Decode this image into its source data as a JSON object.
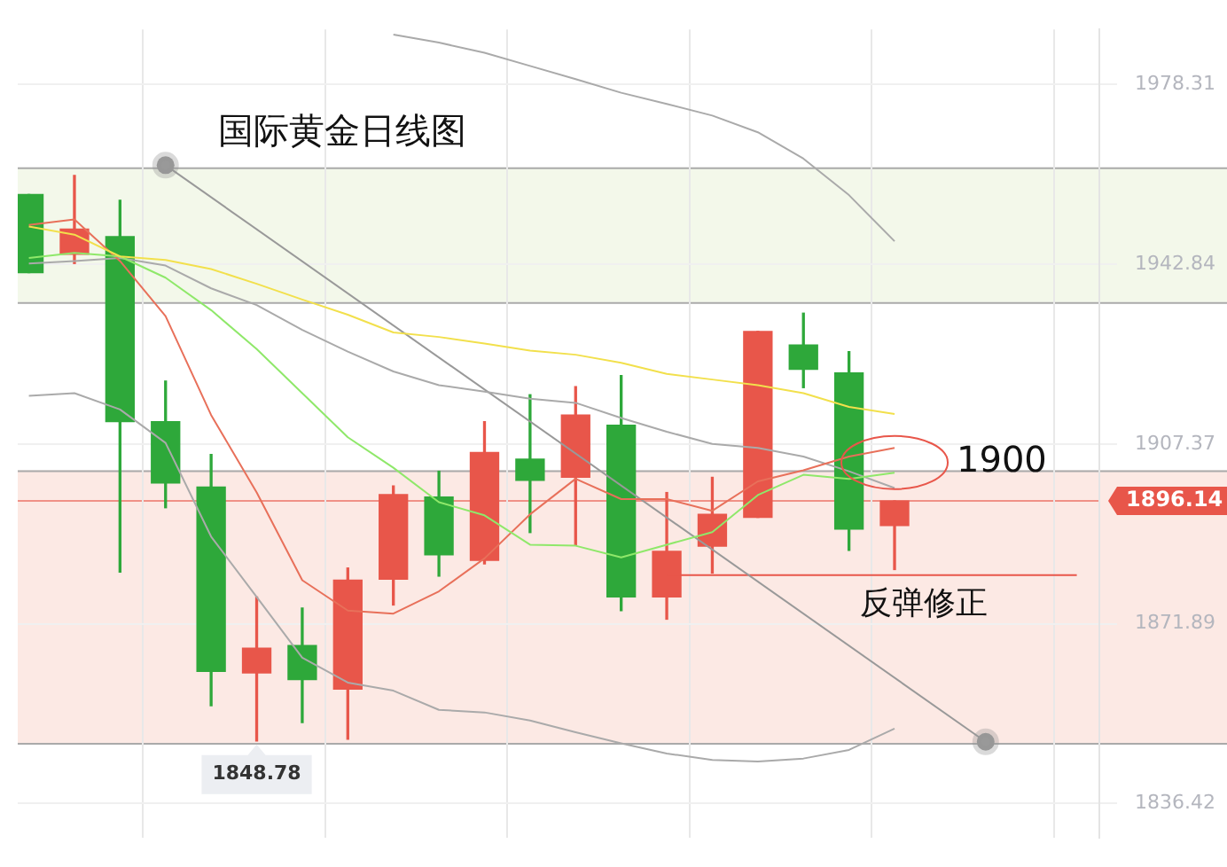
{
  "chart_data": {
    "type": "candlestick",
    "title": "国际黄金日线图",
    "categories": [
      null,
      null,
      null,
      null,
      null,
      null,
      null,
      null,
      null,
      null,
      null,
      null,
      null,
      null,
      null,
      null,
      null,
      null,
      null,
      null,
      null,
      null,
      null,
      null
    ],
    "series": [
      {
        "type": "line",
        "color": "#f2e04c",
        "values": [
          1950.3,
          1948.7,
          1944.4,
          1943.7,
          1941.9,
          1939.0,
          1935.9,
          1932.9,
          1929.4,
          1928.5,
          1927.2,
          1925.8,
          1925.0,
          1923.4,
          1921.2,
          1920.1,
          1919.0,
          1917.4,
          1914.7,
          1913.3,
          null,
          null,
          null,
          null
        ]
      },
      {
        "type": "line",
        "color": "#8fe86a",
        "values": [
          1944.1,
          1945.1,
          1944.4,
          1940.2,
          1933.8,
          1926.1,
          1917.4,
          1908.7,
          1902.7,
          1895.9,
          1893.3,
          1887.5,
          1887.3,
          1885.0,
          1887.5,
          1890.0,
          1897.3,
          1901.3,
          1900.5,
          1901.7,
          null,
          null,
          null,
          null
        ]
      },
      {
        "type": "line",
        "color": "#e8705a",
        "values": [
          1950.6,
          1951.7,
          1943.5,
          1932.6,
          1913.1,
          1897.8,
          1880.5,
          1874.5,
          1873.9,
          1878.3,
          1884.8,
          1893.5,
          1900.5,
          1896.5,
          1896.5,
          1894.2,
          1900.0,
          1902.2,
          1904.9,
          1906.6,
          null,
          null,
          null,
          null
        ]
      },
      {
        "type": "line",
        "color": "#aaaaaa",
        "values": [
          1943.0,
          1943.5,
          1944.1,
          1942.6,
          1938.1,
          1934.8,
          1929.9,
          1925.6,
          1921.7,
          1919.0,
          1917.7,
          1916.3,
          1915.5,
          1912.5,
          1909.8,
          1907.4,
          1906.6,
          1904.9,
          1902.0,
          1898.7,
          null,
          null,
          null,
          null
        ]
      },
      {
        "type": "line",
        "color": "#aaaaaa",
        "values": [
          1916.9,
          1917.4,
          1914.2,
          1907.6,
          1889.1,
          1877.2,
          1865.2,
          1860.3,
          1858.7,
          1854.9,
          1854.4,
          1852.8,
          1850.5,
          1848.3,
          1846.3,
          1845.0,
          1844.7,
          1845.3,
          1847.0,
          1851.2,
          null,
          null,
          null,
          null
        ]
      },
      {
        "type": "line",
        "color": "#aaaaaa",
        "values": [
          null,
          null,
          null,
          null,
          null,
          null,
          null,
          null,
          1988.2,
          1986.6,
          1984.6,
          1982.0,
          1979.4,
          1976.7,
          1974.5,
          1972.2,
          1968.9,
          1963.7,
          1956.5,
          1947.4,
          null,
          null,
          null,
          null
        ]
      },
      {
        "type": "line",
        "color": "#999999",
        "marker": "circle",
        "values": [
          null,
          null,
          null,
          1962.4,
          null,
          null,
          null,
          null,
          null,
          null,
          null,
          null,
          null,
          null,
          null,
          null,
          null,
          null,
          null,
          null,
          null,
          1848.6,
          null,
          null
        ]
      },
      {
        "type": "line",
        "color": "#e8564a",
        "values": [
          null,
          null,
          null,
          null,
          null,
          null,
          null,
          null,
          null,
          null,
          null,
          null,
          null,
          null,
          1881.5,
          1881.5,
          1881.5,
          1881.5,
          1881.5,
          1881.5,
          1881.5,
          1881.5,
          1881.5,
          1881.5
        ]
      },
      {
        "colors": [
          "#2ea83a",
          "#e8564a",
          "#2ea83a",
          "#2ea83a",
          "#2ea83a",
          "#e8564a",
          "#2ea83a",
          "#e8564a",
          "#e8564a",
          "#2ea83a",
          "#e8564a",
          "#2ea83a",
          "#e8564a",
          "#2ea83a",
          "#e8564a",
          "#e8564a",
          "#e8564a",
          "#2ea83a",
          "#2ea83a",
          "#e8564a",
          null,
          null,
          null,
          null
        ],
        "ohlc": [
          [
            1956.6,
            1956.6,
            1941.2,
            1941.2
          ],
          [
            1944.8,
            1960.4,
            1943.0,
            1949.8
          ],
          [
            1948.3,
            1955.5,
            1882.1,
            1911.8
          ],
          [
            1911.8,
            1919.8,
            1894.8,
            1899.7
          ],
          [
            1898.9,
            1905.3,
            1855.7,
            1862.5
          ],
          [
            1862.2,
            1877.2,
            1848.78,
            1867.1
          ],
          [
            1867.6,
            1875.0,
            1852.4,
            1860.9
          ],
          [
            1859.0,
            1882.9,
            1849.1,
            1880.5
          ],
          [
            1880.7,
            1899.1,
            1875.6,
            1897.4
          ],
          [
            1896.9,
            1902.0,
            1881.3,
            1885.5
          ],
          [
            1884.4,
            1911.8,
            1883.7,
            1905.7
          ],
          [
            1904.4,
            1917.1,
            1889.9,
            1900.2
          ],
          [
            1900.8,
            1918.7,
            1887.5,
            1913.1
          ],
          [
            1911.1,
            1920.9,
            1874.5,
            1877.2
          ],
          [
            1877.2,
            1897.8,
            1872.8,
            1886.2
          ],
          [
            1887.2,
            1900.8,
            1881.9,
            1893.5
          ],
          [
            1892.9,
            1929.6,
            1892.9,
            1929.6
          ],
          [
            1926.9,
            1933.2,
            1918.5,
            1922.1
          ],
          [
            1921.4,
            1925.6,
            1886.4,
            1890.6
          ],
          [
            1891.3,
            1896.14,
            1882.6,
            1896.14
          ],
          null,
          null,
          null,
          null
        ]
      }
    ],
    "ylim": [
      1829.7,
      1989.2
    ],
    "yticks": [
      1836.42,
      1871.89,
      1907.37,
      1942.84,
      1978.31
    ],
    "grid": true,
    "tick_labels": "y",
    "bands": [
      {
        "axis": "y",
        "from": 1935.4,
        "to": 1962.0,
        "color": "#f3f8ea"
      },
      {
        "axis": "y",
        "from": 1848.4,
        "to": 1902.2,
        "color": "#fce9e4"
      }
    ],
    "ref_lines": [
      {
        "axis": "y",
        "value": 1896.14,
        "label": "1896.14",
        "color": "#e8564a"
      }
    ],
    "annotations": [
      "1900",
      {
        "text": "反弹修正",
        "y": 1881.5
      },
      {
        "text": "1848.78",
        "y": 1848.78
      }
    ]
  }
}
